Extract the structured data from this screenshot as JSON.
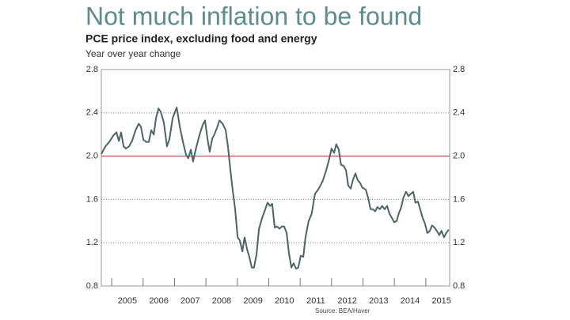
{
  "chart_data": {
    "type": "line",
    "title": "Not much inflation to be found",
    "subtitle": "PCE price index, excluding food and energy",
    "ylabel": "Year over year change",
    "source": "Source:  BEA/Haver",
    "x": [
      2004.67,
      2004.8,
      2004.92,
      2005.05,
      2005.15,
      2005.23,
      2005.3,
      2005.38,
      2005.45,
      2005.55,
      2005.65,
      2005.76,
      2005.86,
      2005.93,
      2006.01,
      2006.11,
      2006.18,
      2006.26,
      2006.34,
      2006.41,
      2006.49,
      2006.56,
      2006.66,
      2006.76,
      2006.84,
      2006.94,
      2007.07,
      2007.17,
      2007.27,
      2007.37,
      2007.44,
      2007.52,
      2007.59,
      2007.7,
      2007.8,
      2007.9,
      2007.97,
      2008.05,
      2008.12,
      2008.2,
      2008.27,
      2008.35,
      2008.43,
      2008.53,
      2008.63,
      2008.7,
      2008.78,
      2008.85,
      2008.93,
      2009.01,
      2009.08,
      2009.16,
      2009.23,
      2009.31,
      2009.38,
      2009.46,
      2009.53,
      2009.61,
      2009.69,
      2009.79,
      2009.89,
      2009.96,
      2010.04,
      2010.11,
      2010.19,
      2010.26,
      2010.34,
      2010.42,
      2010.49,
      2010.57,
      2010.64,
      2010.72,
      2010.79,
      2010.87,
      2010.94,
      2011.02,
      2011.1,
      2011.17,
      2011.27,
      2011.37,
      2011.47,
      2011.57,
      2011.65,
      2011.73,
      2011.83,
      2011.93,
      2012.0,
      2012.08,
      2012.15,
      2012.23,
      2012.3,
      2012.38,
      2012.46,
      2012.53,
      2012.61,
      2012.68,
      2012.76,
      2012.83,
      2012.91,
      2012.98,
      2013.09,
      2013.16,
      2013.24,
      2013.31,
      2013.39,
      2013.46,
      2013.54,
      2013.61,
      2013.69,
      2013.77,
      2013.84,
      2013.92,
      2013.99,
      2014.07,
      2014.14,
      2014.22,
      2014.29,
      2014.37,
      2014.45,
      2014.52,
      2014.6,
      2014.67,
      2014.75,
      2014.82,
      2014.9,
      2014.97,
      2015.05,
      2015.13,
      2015.2,
      2015.28,
      2015.35,
      2015.43,
      2015.5,
      2015.58,
      2015.65,
      2015.73
    ],
    "series": [
      {
        "color": "#4d6566",
        "values": [
          2.02,
          2.09,
          2.13,
          2.19,
          2.22,
          2.14,
          2.22,
          2.09,
          2.07,
          2.09,
          2.14,
          2.24,
          2.3,
          2.27,
          2.15,
          2.13,
          2.13,
          2.24,
          2.2,
          2.35,
          2.44,
          2.41,
          2.31,
          2.09,
          2.16,
          2.35,
          2.45,
          2.27,
          2.13,
          2.01,
          1.98,
          2.06,
          1.95,
          2.09,
          2.2,
          2.29,
          2.33,
          2.16,
          2.04,
          2.16,
          2.2,
          2.26,
          2.33,
          2.3,
          2.24,
          2.09,
          1.87,
          1.69,
          1.51,
          1.25,
          1.22,
          1.12,
          1.25,
          1.14,
          1.07,
          0.97,
          0.97,
          1.09,
          1.33,
          1.43,
          1.51,
          1.57,
          1.54,
          1.56,
          1.34,
          1.35,
          1.33,
          1.35,
          1.35,
          1.29,
          1.11,
          0.97,
          1.01,
          0.96,
          0.97,
          1.08,
          1.07,
          1.25,
          1.4,
          1.47,
          1.65,
          1.69,
          1.73,
          1.78,
          1.87,
          1.98,
          2.07,
          2.03,
          2.11,
          2.06,
          1.92,
          1.91,
          1.87,
          1.73,
          1.7,
          1.78,
          1.84,
          1.78,
          1.75,
          1.71,
          1.69,
          1.62,
          1.51,
          1.51,
          1.49,
          1.53,
          1.51,
          1.54,
          1.51,
          1.54,
          1.47,
          1.43,
          1.39,
          1.4,
          1.47,
          1.53,
          1.62,
          1.67,
          1.63,
          1.65,
          1.67,
          1.57,
          1.58,
          1.51,
          1.43,
          1.38,
          1.29,
          1.31,
          1.36,
          1.34,
          1.31,
          1.27,
          1.31,
          1.25,
          1.29,
          1.32
        ]
      }
    ],
    "xlim": [
      2004.67,
      2015.76
    ],
    "xticks": [
      2005,
      2006,
      2007,
      2008,
      2009,
      2010,
      2011,
      2012,
      2013,
      2014,
      2015
    ],
    "ylim": [
      0.8,
      2.8
    ],
    "yticks": [
      0.8,
      1.2,
      1.6,
      {
        "value": 2,
        "label": "2.0"
      },
      2.4,
      2.8
    ],
    "grid": true,
    "reference_line": 2,
    "reference_color": "#a3302f"
  }
}
